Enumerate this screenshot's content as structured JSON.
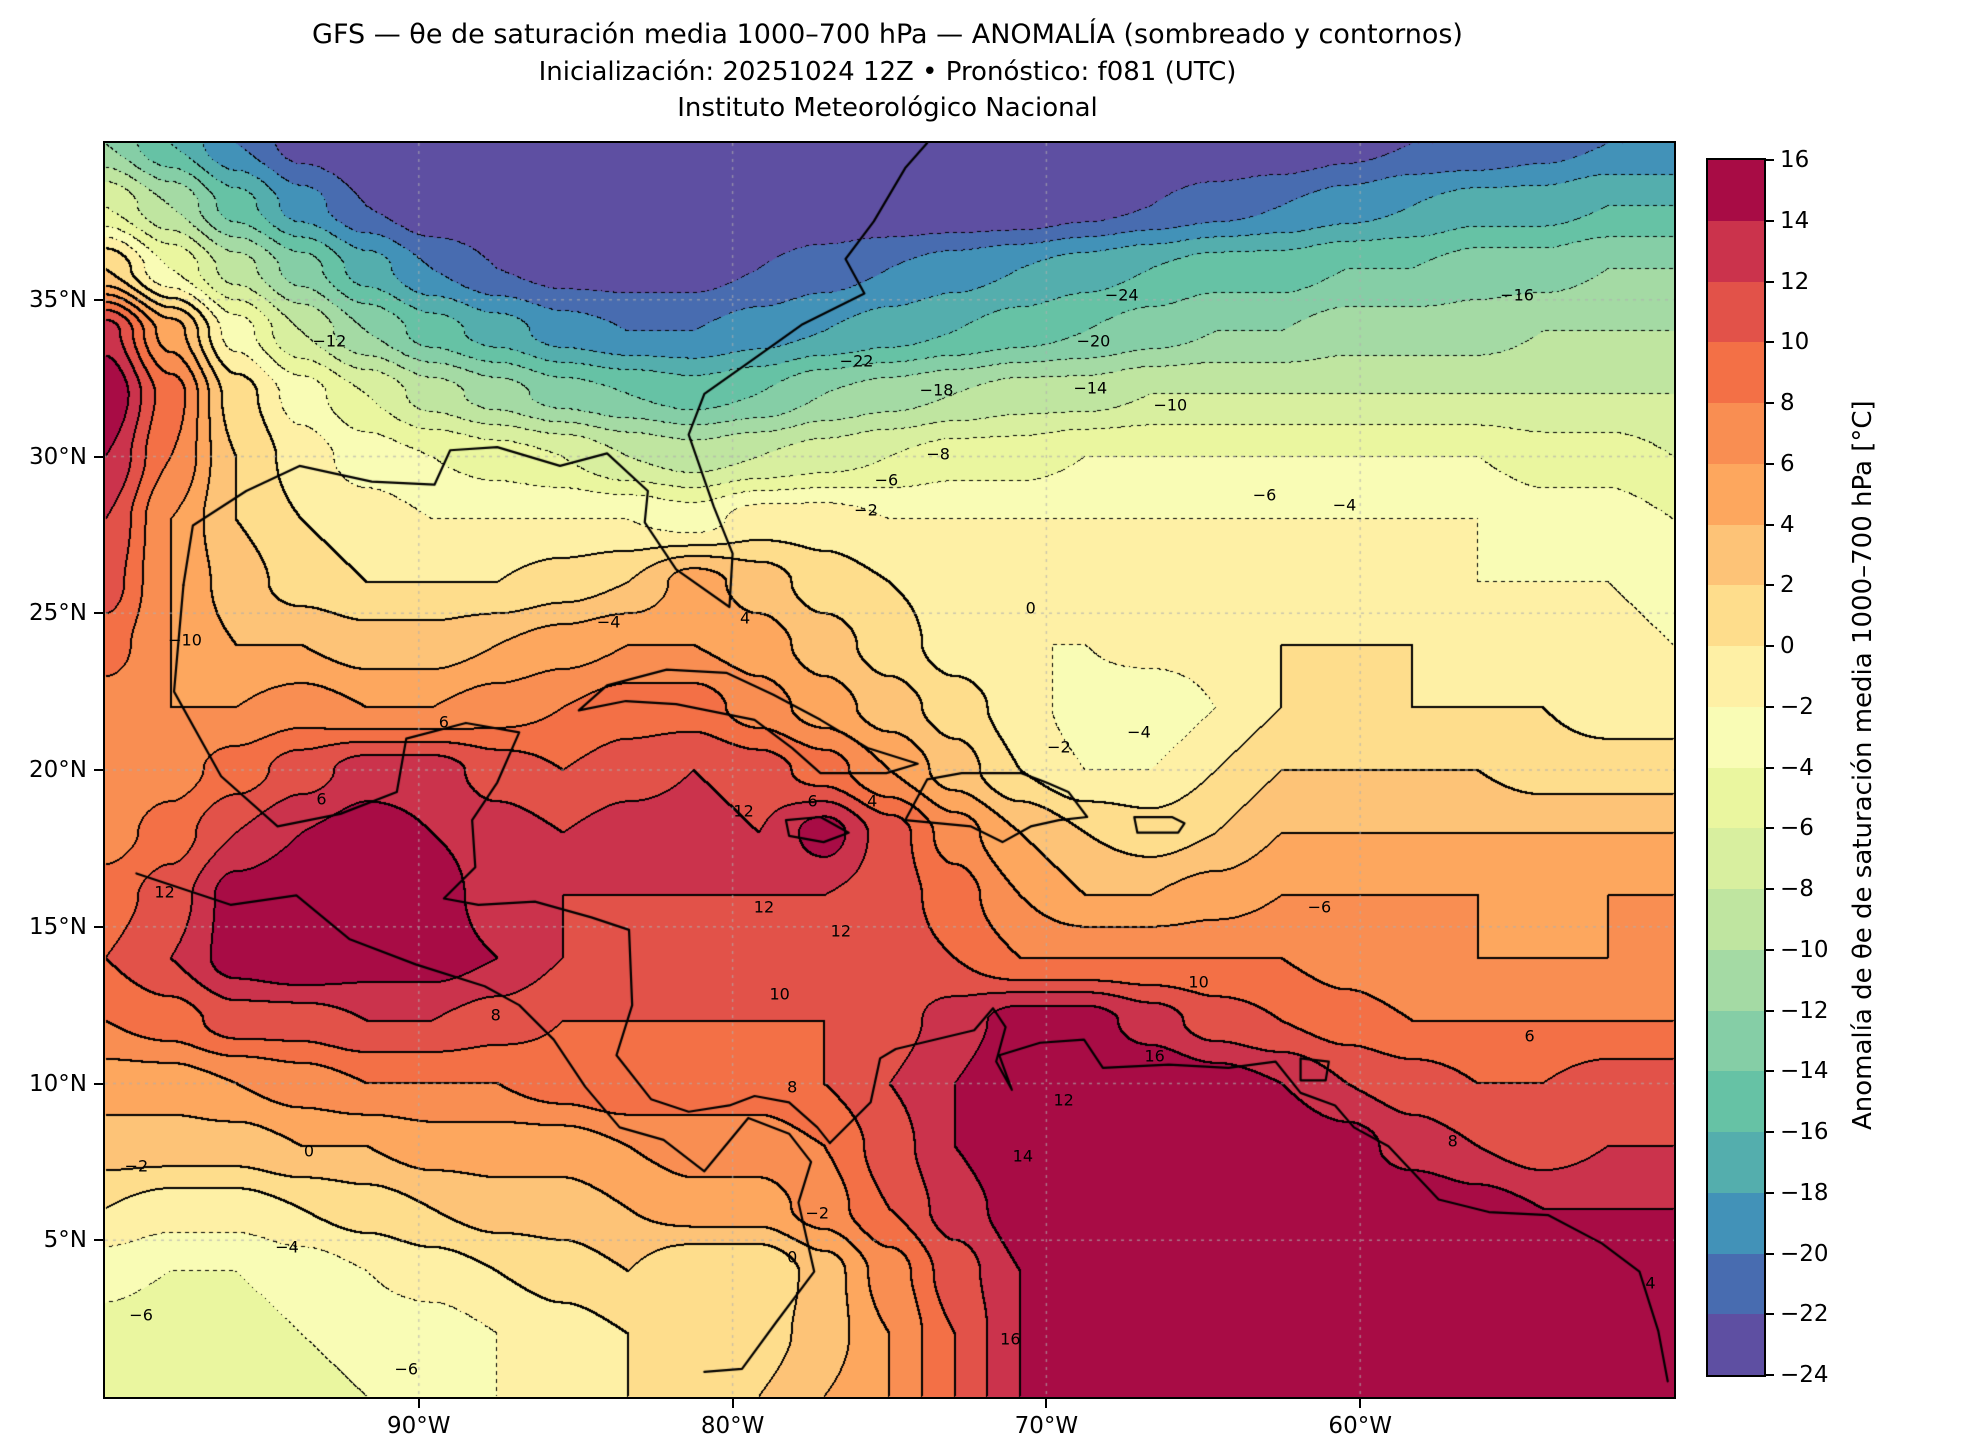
{
  "header": {
    "title": "GFS — θe de saturación media 1000–700 hPa — ANOMALÍA (sombreado y contornos)",
    "subtitle": "Inicialización: 20251024 12Z   •   Pronóstico: f081 (UTC)",
    "institution": "Instituto Meteorológico Nacional"
  },
  "chart_data": {
    "type": "heatmap",
    "title": "GFS — θe de saturación media 1000–700 hPa — ANOMALÍA (sombreado y contornos)",
    "subtitle": "Inicialización: 20251024 12Z  •  Pronóstico: f081 (UTC)",
    "institution": "Instituto Meteorológico Nacional",
    "model": "GFS",
    "init": "20251024 12Z",
    "forecast": "f081 (UTC)",
    "lon_range": [
      -100,
      -50
    ],
    "lat_range": [
      0,
      40
    ],
    "x_ticks": [
      {
        "lon": -90,
        "label": "90°W"
      },
      {
        "lon": -80,
        "label": "80°W"
      },
      {
        "lon": -70,
        "label": "70°W"
      },
      {
        "lon": -60,
        "label": "60°W"
      }
    ],
    "y_ticks": [
      {
        "lat": 35,
        "label": "35°N"
      },
      {
        "lat": 30,
        "label": "30°N"
      },
      {
        "lat": 25,
        "label": "25°N"
      },
      {
        "lat": 20,
        "label": "20°N"
      },
      {
        "lat": 15,
        "label": "15°N"
      },
      {
        "lat": 10,
        "label": "10°N"
      },
      {
        "lat": 5,
        "label": "5°N"
      }
    ],
    "levels_min": -24,
    "levels_max": 16,
    "levels_step": 2,
    "colors": [
      "#5e4fa2",
      "#486cb0",
      "#4292b8",
      "#54aead",
      "#66c2a5",
      "#85cea6",
      "#a4daa4",
      "#bfe5a0",
      "#d8ef9f",
      "#eaf69f",
      "#f9fcb5",
      "#fef0a5",
      "#fedd8c",
      "#fdc377",
      "#fda75e",
      "#f98e52",
      "#f37046",
      "#e25249",
      "#cb334c",
      "#a80c45"
    ],
    "colorbar": {
      "label": "Anomalía de θe de saturación media 1000–700 hPa [°C]",
      "ticks": [
        16,
        14,
        12,
        10,
        8,
        6,
        4,
        2,
        0,
        -2,
        -4,
        -6,
        -8,
        -10,
        -12,
        -14,
        -16,
        -18,
        -20,
        -22,
        -24
      ]
    },
    "values": [
      [
        -12,
        -16,
        -20,
        -23,
        -24,
        -24,
        -24,
        -24,
        -24,
        -24,
        -24,
        -24,
        -24,
        -24,
        -24,
        -24,
        -24,
        -24,
        -24,
        -23,
        -22,
        -22,
        -21,
        -20,
        -20
      ],
      [
        -6,
        -10,
        -15,
        -19,
        -22,
        -24,
        -24,
        -24,
        -24,
        -24,
        -24,
        -24,
        -24,
        -24,
        -24,
        -23,
        -22,
        -21,
        -20,
        -19,
        -18,
        -17,
        -17,
        -16,
        -16
      ],
      [
        2,
        -4,
        -9,
        -13,
        -17,
        -20,
        -22,
        -23,
        -23,
        -23,
        -22,
        -21,
        -20,
        -19,
        -18,
        -17,
        -16,
        -15,
        -15,
        -14,
        -14,
        -13,
        -13,
        -12,
        -12
      ],
      [
        13,
        5,
        -3,
        -8,
        -12,
        -15,
        -17,
        -19,
        -20,
        -20,
        -19,
        -18,
        -17,
        -16,
        -15,
        -14,
        -13,
        -12,
        -12,
        -11,
        -11,
        -11,
        -10,
        -10,
        -10
      ],
      [
        16,
        9,
        1,
        -3,
        -6,
        -9,
        -11,
        -13,
        -14,
        -15,
        -14,
        -12,
        -11,
        -10,
        -9,
        -9,
        -8,
        -8,
        -8,
        -8,
        -8,
        -8,
        -8,
        -8,
        -8
      ],
      [
        14,
        8,
        2,
        -1,
        -3,
        -4,
        -5,
        -6,
        -8,
        -9,
        -8,
        -7,
        -6,
        -5,
        -5,
        -4,
        -4,
        -4,
        -4,
        -4,
        -4,
        -4,
        -5,
        -5,
        -6
      ],
      [
        12,
        6,
        2,
        0,
        -1,
        -2,
        -2,
        -2,
        -2,
        -3,
        -1,
        -1,
        -2,
        -2,
        -2,
        -2,
        -2,
        -2,
        -2,
        -2,
        -2,
        -2,
        -3,
        -3,
        -4
      ],
      [
        11,
        6,
        3,
        1,
        0,
        0,
        0,
        1,
        2,
        5,
        3,
        1,
        0,
        -1,
        -1,
        -1,
        -1,
        -1,
        -1,
        -1,
        -1,
        -2,
        -2,
        -2,
        -3
      ],
      [
        9,
        6,
        4,
        4,
        3,
        3,
        4,
        5,
        6,
        6,
        5,
        3,
        1,
        -1,
        -2,
        -2,
        -1,
        -1,
        0,
        0,
        0,
        -1,
        -1,
        -1,
        -2
      ],
      [
        7,
        6,
        6,
        7,
        6,
        6,
        7,
        8,
        9,
        9,
        7,
        5,
        3,
        1,
        -1,
        -3,
        -4,
        -2,
        0,
        0,
        0,
        0,
        0,
        -1,
        -1
      ],
      [
        6,
        7,
        9,
        11,
        13,
        13,
        11,
        10,
        11,
        12,
        11,
        9,
        6,
        3,
        0,
        -2,
        -2,
        0,
        2,
        2,
        2,
        2,
        1,
        1,
        1
      ],
      [
        7,
        9,
        12,
        14,
        15,
        14,
        13,
        12,
        13,
        13,
        12,
        15,
        11,
        7,
        4,
        2,
        1,
        2,
        4,
        4,
        4,
        4,
        4,
        4,
        4
      ],
      [
        9,
        11,
        15,
        16,
        16,
        15,
        13,
        12,
        12,
        12,
        12,
        12,
        11,
        9,
        6,
        4,
        4,
        5,
        6,
        6,
        6,
        6,
        5,
        6,
        6
      ],
      [
        10,
        12,
        15,
        16,
        15,
        15,
        14,
        12,
        11,
        11,
        11,
        11,
        11,
        10,
        8,
        8,
        8,
        8,
        8,
        7,
        6,
        6,
        6,
        6,
        7
      ],
      [
        8,
        9,
        11,
        11,
        12,
        12,
        11,
        10,
        10,
        10,
        10,
        10,
        11,
        13,
        15,
        15,
        13,
        11,
        10,
        9,
        8,
        8,
        8,
        8,
        8
      ],
      [
        5,
        5,
        6,
        7,
        8,
        8,
        8,
        9,
        10,
        9,
        9,
        10,
        12,
        14,
        16,
        16,
        16,
        15,
        14,
        12,
        11,
        10,
        10,
        11,
        11
      ],
      [
        3,
        3,
        3,
        4,
        4,
        5,
        5,
        5,
        6,
        7,
        7,
        8,
        11,
        14,
        16,
        16,
        16,
        16,
        16,
        15,
        13,
        12,
        11,
        12,
        12
      ],
      [
        0,
        -1,
        -1,
        0,
        1,
        2,
        3,
        3,
        4,
        5,
        5,
        7,
        10,
        13,
        15,
        16,
        16,
        16,
        16,
        16,
        16,
        15,
        14,
        14,
        14
      ],
      [
        -3,
        -4,
        -4,
        -3,
        -2,
        -1,
        0,
        1,
        2,
        0,
        0,
        3,
        7,
        11,
        14,
        16,
        16,
        16,
        16,
        16,
        16,
        16,
        16,
        16,
        16
      ],
      [
        -5,
        -6,
        -5,
        -4,
        -3,
        -3,
        -2,
        -1,
        0,
        0,
        1,
        3,
        6,
        10,
        14,
        16,
        16,
        16,
        16,
        16,
        16,
        16,
        16,
        16,
        16
      ],
      [
        -6,
        -6,
        -6,
        -5,
        -4,
        -3,
        -2,
        -1,
        0,
        1,
        2,
        4,
        6,
        10,
        14,
        16,
        16,
        16,
        16,
        16,
        16,
        16,
        16,
        16,
        16
      ]
    ],
    "contour_labels": [
      {
        "t": "−24",
        "x": 64.8,
        "y": 12.1
      },
      {
        "t": "−20",
        "x": 63.0,
        "y": 15.8
      },
      {
        "t": "−22",
        "x": 47.9,
        "y": 17.4
      },
      {
        "t": "−18",
        "x": 53.0,
        "y": 19.7
      },
      {
        "t": "−14",
        "x": 62.8,
        "y": 19.5
      },
      {
        "t": "−16",
        "x": 90.0,
        "y": 12.1
      },
      {
        "t": "−12",
        "x": 14.3,
        "y": 15.8
      },
      {
        "t": "−10",
        "x": 67.9,
        "y": 20.9
      },
      {
        "t": "−8",
        "x": 53.1,
        "y": 24.8
      },
      {
        "t": "−6",
        "x": 49.8,
        "y": 26.9
      },
      {
        "t": "−6",
        "x": 73.9,
        "y": 28.1
      },
      {
        "t": "−4",
        "x": 79.0,
        "y": 28.9
      },
      {
        "t": "−2",
        "x": 48.5,
        "y": 29.3
      },
      {
        "t": "−10",
        "x": 5.1,
        "y": 39.6
      },
      {
        "t": "−4",
        "x": 32.1,
        "y": 38.2
      },
      {
        "t": "4",
        "x": 40.8,
        "y": 37.9
      },
      {
        "t": "0",
        "x": 59.0,
        "y": 37.1
      },
      {
        "t": "6",
        "x": 21.6,
        "y": 46.2
      },
      {
        "t": "−2",
        "x": 60.8,
        "y": 48.2
      },
      {
        "t": "−4",
        "x": 65.9,
        "y": 47.0
      },
      {
        "t": "6",
        "x": 13.8,
        "y": 52.3
      },
      {
        "t": "12",
        "x": 40.7,
        "y": 53.3
      },
      {
        "t": "6",
        "x": 45.1,
        "y": 52.5
      },
      {
        "t": "4",
        "x": 48.9,
        "y": 52.5
      },
      {
        "t": "12",
        "x": 3.8,
        "y": 59.7
      },
      {
        "t": "12",
        "x": 42.0,
        "y": 60.9
      },
      {
        "t": "−6",
        "x": 77.4,
        "y": 60.9
      },
      {
        "t": "12",
        "x": 46.9,
        "y": 62.8
      },
      {
        "t": "10",
        "x": 69.7,
        "y": 66.9
      },
      {
        "t": "10",
        "x": 43.0,
        "y": 67.9
      },
      {
        "t": "8",
        "x": 24.9,
        "y": 69.5
      },
      {
        "t": "6",
        "x": 90.8,
        "y": 71.2
      },
      {
        "t": "16",
        "x": 66.9,
        "y": 72.8
      },
      {
        "t": "12",
        "x": 61.1,
        "y": 76.3
      },
      {
        "t": "8",
        "x": 43.8,
        "y": 75.3
      },
      {
        "t": "14",
        "x": 58.5,
        "y": 80.8
      },
      {
        "t": "8",
        "x": 85.9,
        "y": 79.6
      },
      {
        "t": "0",
        "x": 13.0,
        "y": 80.4
      },
      {
        "t": "−2",
        "x": 2.0,
        "y": 81.6
      },
      {
        "t": "−2",
        "x": 45.4,
        "y": 85.3
      },
      {
        "t": "−4",
        "x": 11.6,
        "y": 88.0
      },
      {
        "t": "0",
        "x": 43.8,
        "y": 88.8
      },
      {
        "t": "16",
        "x": 57.7,
        "y": 95.4
      },
      {
        "t": "−6",
        "x": 2.3,
        "y": 93.5
      },
      {
        "t": "−6",
        "x": 19.2,
        "y": 97.8
      },
      {
        "t": "4",
        "x": 98.5,
        "y": 90.9
      }
    ],
    "coastlines": [
      [
        [
          -97.5,
          25.9
        ],
        [
          -97.2,
          27.8
        ],
        [
          -95.5,
          28.9
        ],
        [
          -93.8,
          29.7
        ],
        [
          -91.5,
          29.2
        ],
        [
          -89.5,
          29.1
        ],
        [
          -89,
          30.2
        ],
        [
          -87.5,
          30.3
        ],
        [
          -85.5,
          29.7
        ],
        [
          -84,
          30.1
        ],
        [
          -82.7,
          28.9
        ],
        [
          -82.8,
          27.9
        ],
        [
          -81.8,
          26.4
        ],
        [
          -80.1,
          25.2
        ],
        [
          -80,
          26.9
        ],
        [
          -80.6,
          28.4
        ],
        [
          -81.4,
          30.7
        ],
        [
          -80.9,
          32
        ],
        [
          -79.2,
          33.2
        ],
        [
          -77.8,
          34.2
        ],
        [
          -75.8,
          35.2
        ],
        [
          -76.4,
          36.3
        ],
        [
          -75.5,
          37.5
        ],
        [
          -74.5,
          39.2
        ],
        [
          -73.8,
          40
        ]
      ],
      [
        [
          -97.5,
          25.9
        ],
        [
          -97.8,
          22.5
        ],
        [
          -96.3,
          19.8
        ],
        [
          -94.5,
          18.2
        ],
        [
          -92.5,
          18.6
        ],
        [
          -90.7,
          19.3
        ],
        [
          -90.4,
          21
        ],
        [
          -88.5,
          21.5
        ],
        [
          -86.8,
          21.2
        ],
        [
          -87.5,
          19.6
        ],
        [
          -88.3,
          18.4
        ],
        [
          -88.2,
          16.9
        ],
        [
          -89.2,
          15.9
        ],
        [
          -88.1,
          15.7
        ],
        [
          -86.3,
          15.8
        ],
        [
          -84.5,
          15.3
        ],
        [
          -83.3,
          14.9
        ],
        [
          -83.2,
          12.5
        ],
        [
          -83.7,
          10.9
        ],
        [
          -82.6,
          9.5
        ],
        [
          -81.4,
          9.1
        ],
        [
          -80.1,
          9.3
        ],
        [
          -79.3,
          9.6
        ],
        [
          -78.2,
          9.4
        ],
        [
          -77.3,
          8.6
        ],
        [
          -76.9,
          8.1
        ]
      ],
      [
        [
          -99,
          16.7
        ],
        [
          -96,
          15.7
        ],
        [
          -93.9,
          16
        ],
        [
          -92.2,
          14.6
        ],
        [
          -90.1,
          13.8
        ],
        [
          -87.9,
          13.1
        ],
        [
          -86.8,
          12.5
        ],
        [
          -85.7,
          11.4
        ],
        [
          -84.7,
          9.9
        ],
        [
          -83.6,
          8.6
        ],
        [
          -82.2,
          8.2
        ],
        [
          -80.9,
          7.2
        ],
        [
          -79.5,
          8.9
        ],
        [
          -78.2,
          8.4
        ],
        [
          -77.5,
          7.5
        ],
        [
          -77.9,
          6.2
        ],
        [
          -77.4,
          4
        ],
        [
          -78.6,
          2.4
        ],
        [
          -79.7,
          0.9
        ],
        [
          -80.9,
          0.8
        ]
      ],
      [
        [
          -76.9,
          8.1
        ],
        [
          -75.6,
          9.4
        ],
        [
          -75.3,
          10.8
        ],
        [
          -74.8,
          11.1
        ],
        [
          -72.3,
          11.7
        ],
        [
          -71.7,
          12.4
        ],
        [
          -71.3,
          11.8
        ],
        [
          -71.6,
          10.7
        ],
        [
          -71.1,
          9.8
        ],
        [
          -71.5,
          10.9
        ],
        [
          -70.2,
          11.3
        ],
        [
          -68.8,
          11.4
        ],
        [
          -68.2,
          10.5
        ],
        [
          -66.1,
          10.6
        ],
        [
          -64.2,
          10.5
        ],
        [
          -62.7,
          10.7
        ],
        [
          -61.9,
          9.7
        ],
        [
          -60.8,
          9.3
        ],
        [
          -60.2,
          8.6
        ],
        [
          -59.1,
          8
        ],
        [
          -57.5,
          6.3
        ],
        [
          -55.9,
          5.9
        ],
        [
          -54,
          5.8
        ],
        [
          -52.3,
          4.9
        ],
        [
          -51.1,
          4
        ],
        [
          -50.5,
          2.1
        ],
        [
          -50.2,
          0.5
        ]
      ],
      [
        [
          -84.9,
          21.9
        ],
        [
          -84,
          22.7
        ],
        [
          -82.1,
          23.2
        ],
        [
          -80.2,
          23.1
        ],
        [
          -78.7,
          22.4
        ],
        [
          -77.2,
          21.6
        ],
        [
          -75.7,
          20.7
        ],
        [
          -74.1,
          20.2
        ],
        [
          -75.1,
          19.9
        ],
        [
          -77.2,
          19.9
        ],
        [
          -78.1,
          20.7
        ],
        [
          -79.3,
          21.6
        ],
        [
          -81.8,
          22.1
        ],
        [
          -83.4,
          22.2
        ],
        [
          -84.9,
          21.9
        ]
      ],
      [
        [
          -74.5,
          18.4
        ],
        [
          -73.8,
          19.7
        ],
        [
          -72.7,
          19.9
        ],
        [
          -71.6,
          19.9
        ],
        [
          -70.8,
          19.9
        ],
        [
          -70,
          19.6
        ],
        [
          -69.3,
          19.3
        ],
        [
          -68.7,
          18.5
        ],
        [
          -69.6,
          18.4
        ],
        [
          -70.5,
          18.2
        ],
        [
          -71.4,
          17.7
        ],
        [
          -72.4,
          18.2
        ],
        [
          -73.4,
          18.3
        ],
        [
          -74.5,
          18.4
        ]
      ],
      [
        [
          -78.3,
          18.4
        ],
        [
          -77.2,
          18.5
        ],
        [
          -76.3,
          18
        ],
        [
          -77.1,
          17.7
        ],
        [
          -78.2,
          17.9
        ],
        [
          -78.3,
          18.4
        ]
      ],
      [
        [
          -67.2,
          18.5
        ],
        [
          -66,
          18.5
        ],
        [
          -65.6,
          18.3
        ],
        [
          -65.8,
          18
        ],
        [
          -67.1,
          18
        ],
        [
          -67.2,
          18.5
        ]
      ],
      [
        [
          -61.9,
          10.8
        ],
        [
          -61,
          10.7
        ],
        [
          -61.1,
          10.1
        ],
        [
          -61.9,
          10.1
        ],
        [
          -61.9,
          10.8
        ]
      ]
    ]
  }
}
